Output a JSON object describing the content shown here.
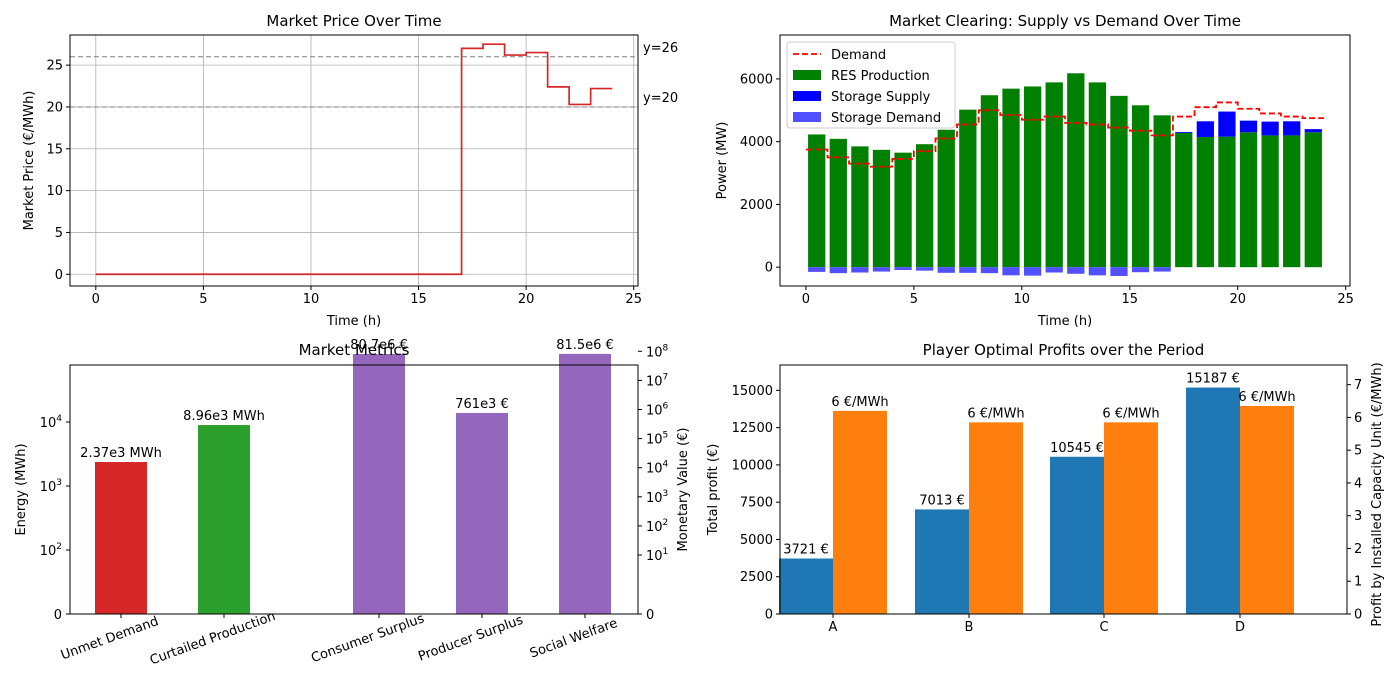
{
  "chart_data": [
    {
      "type": "line",
      "title": "Market Price Over Time",
      "xlabel": "Time (h)",
      "ylabel": "Market Price (€/MWh)",
      "xlim": [
        -1.2,
        25.2
      ],
      "ylim": [
        -1.4,
        28.6
      ],
      "xticks": [
        0,
        5,
        10,
        15,
        20,
        25
      ],
      "yticks": [
        0,
        5,
        10,
        15,
        20,
        25
      ],
      "grid": true,
      "step": "post",
      "color": "#d62728",
      "x": [
        0,
        1,
        2,
        3,
        4,
        5,
        6,
        7,
        8,
        9,
        10,
        11,
        12,
        13,
        14,
        15,
        16,
        17,
        18,
        19,
        20,
        21,
        22,
        23,
        24
      ],
      "y": [
        0,
        0,
        0,
        0,
        0,
        0,
        0,
        0,
        0,
        0,
        0,
        0,
        0,
        0,
        0,
        0,
        0,
        27,
        27.5,
        26.2,
        26.5,
        22.4,
        20.3,
        22.2,
        22.2
      ],
      "reference_lines": [
        {
          "value": 26,
          "label": "y=26"
        },
        {
          "value": 20,
          "label": "y=20"
        }
      ]
    },
    {
      "type": "bar",
      "title": "Market Clearing: Supply vs Demand Over Time",
      "xlabel": "Time (h)",
      "ylabel": "Power (MW)",
      "xlim": [
        -1.2,
        25.2
      ],
      "ylim": [
        -600,
        7400
      ],
      "xticks": [
        0,
        5,
        10,
        15,
        20,
        25
      ],
      "yticks": [
        0,
        2000,
        4000,
        6000
      ],
      "grid": false,
      "legend_position": "top-left",
      "x": [
        0.5,
        1.5,
        2.5,
        3.5,
        4.5,
        5.5,
        6.5,
        7.5,
        8.5,
        9.5,
        10.5,
        11.5,
        12.5,
        13.5,
        14.5,
        15.5,
        16.5,
        17.5,
        18.5,
        19.5,
        20.5,
        21.5,
        22.5,
        23.5
      ],
      "series": [
        {
          "name": "RES Production",
          "kind": "bar",
          "color": "#008000",
          "values": [
            4230,
            4090,
            3850,
            3740,
            3650,
            3920,
            4380,
            5020,
            5480,
            5690,
            5760,
            5890,
            6180,
            5890,
            5460,
            5160,
            4840,
            4280,
            4150,
            4160,
            4300,
            4200,
            4200,
            4300
          ]
        },
        {
          "name": "Storage Supply",
          "kind": "bar",
          "color": "#0000ff",
          "values": [
            0,
            0,
            0,
            0,
            0,
            0,
            0,
            0,
            0,
            0,
            0,
            0,
            0,
            0,
            0,
            0,
            0,
            30,
            500,
            800,
            370,
            440,
            450,
            100
          ]
        },
        {
          "name": "Storage Demand",
          "kind": "bar",
          "color": "#5050ff",
          "values": [
            -150,
            -190,
            -170,
            -140,
            -90,
            -110,
            -180,
            -180,
            -190,
            -260,
            -270,
            -170,
            -210,
            -260,
            -280,
            -160,
            -140,
            0,
            0,
            0,
            0,
            0,
            0,
            0
          ]
        },
        {
          "name": "Demand",
          "kind": "step",
          "color": "#ff0000",
          "values": [
            3750,
            3500,
            3300,
            3200,
            3450,
            3700,
            4100,
            4550,
            5000,
            4850,
            4700,
            4800,
            4600,
            4550,
            4450,
            4350,
            4200,
            4800,
            5100,
            5250,
            5050,
            4900,
            4800,
            4750
          ]
        }
      ]
    },
    {
      "type": "bar",
      "title": "Market Metrics",
      "ylabel": "Energy (MWh)",
      "ylabel_right": "Monetary Value (€)",
      "yscale": "symlog",
      "ylim_left": [
        0,
        80000
      ],
      "ylim_right": [
        0,
        300000000
      ],
      "left_ticks": [
        {
          "value": 0,
          "base": "0",
          "exp": ""
        },
        {
          "value": 100,
          "base": "10",
          "exp": "2"
        },
        {
          "value": 1000,
          "base": "10",
          "exp": "3"
        },
        {
          "value": 10000,
          "base": "10",
          "exp": "4"
        }
      ],
      "right_ticks": [
        {
          "value": 0,
          "base": "0",
          "exp": ""
        },
        {
          "value": 10,
          "base": "10",
          "exp": "1"
        },
        {
          "value": 100,
          "base": "10",
          "exp": "2"
        },
        {
          "value": 1000,
          "base": "10",
          "exp": "3"
        },
        {
          "value": 10000,
          "base": "10",
          "exp": "4"
        },
        {
          "value": 100000,
          "base": "10",
          "exp": "5"
        },
        {
          "value": 1000000,
          "base": "10",
          "exp": "6"
        },
        {
          "value": 10000000,
          "base": "10",
          "exp": "7"
        },
        {
          "value": 100000000,
          "base": "10",
          "exp": "8"
        }
      ],
      "bars": [
        {
          "category": "Unmet Demand",
          "value": 2370,
          "label": "2.37e3 MWh",
          "axis": "left",
          "color": "#d62728"
        },
        {
          "category": "Curtailed Production",
          "value": 8960,
          "label": "8.96e3 MWh",
          "axis": "left",
          "color": "#2ca02c"
        },
        {
          "category": "Consumer Surplus",
          "value": 80700000,
          "label": "80.7e6 €",
          "axis": "right",
          "color": "#9467bd"
        },
        {
          "category": "Producer Surplus",
          "value": 761000,
          "label": "761e3 €",
          "axis": "right",
          "color": "#9467bd"
        },
        {
          "category": "Social Welfare",
          "value": 81500000,
          "label": "81.5e6 €",
          "axis": "right",
          "color": "#9467bd"
        }
      ]
    },
    {
      "type": "bar",
      "title": "Player Optimal Profits over the Period",
      "ylabel": "Total profit (€)",
      "ylabel_right": "Profit by Installed Capacity Unit (€/MWh)",
      "categories": [
        "A",
        "B",
        "C",
        "D"
      ],
      "ylim_left": [
        0,
        16700
      ],
      "ylim_right": [
        0,
        7.6
      ],
      "left_ticks": [
        0,
        2500,
        5000,
        7500,
        10000,
        12500,
        15000
      ],
      "right_ticks": [
        0,
        1,
        2,
        3,
        4,
        5,
        6,
        7
      ],
      "series": [
        {
          "axis": "left",
          "color": "#1f77b4",
          "values": [
            3721,
            7013,
            10545,
            15187
          ],
          "labels": [
            "3721 €",
            "7013 €",
            "10545 €",
            "15187 €"
          ]
        },
        {
          "axis": "right",
          "color": "#ff7f0e",
          "values": [
            6.2,
            5.85,
            5.85,
            6.35
          ],
          "labels": [
            "6 €/MWh",
            "6 €/MWh",
            "6 €/MWh",
            "6 €/MWh"
          ]
        }
      ]
    }
  ]
}
